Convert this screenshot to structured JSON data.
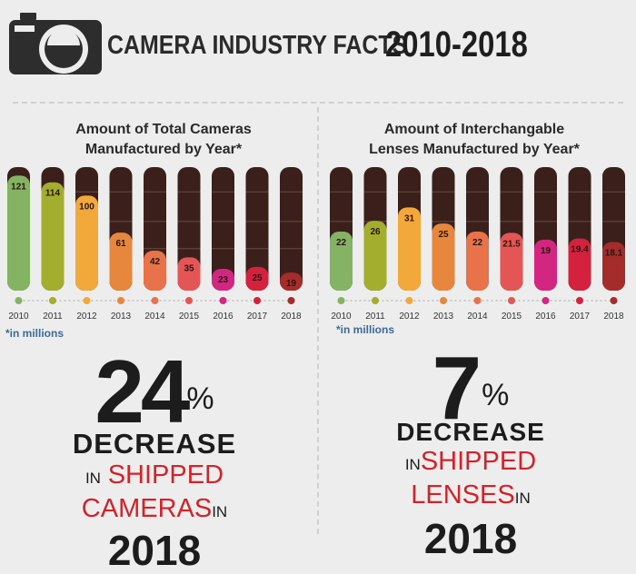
{
  "header": {
    "title": "CAMERA INDUSTRY FACTS",
    "years": "2010-2018"
  },
  "chart_data": [
    {
      "type": "bar",
      "title_line1": "Amount of Total Cameras",
      "title_line2": "Manufactured by Year*",
      "categories": [
        "2010",
        "2011",
        "2012",
        "2013",
        "2014",
        "2015",
        "2016",
        "2017",
        "2018"
      ],
      "values": [
        121,
        114,
        100,
        61,
        42,
        35,
        23,
        25,
        19
      ],
      "value_labels": [
        "121",
        "114",
        "100",
        "61",
        "42",
        "35",
        "23",
        "25",
        "19"
      ],
      "ylim": [
        0,
        130
      ],
      "colors": [
        "#84b463",
        "#a3ad2e",
        "#f3a83a",
        "#e7873e",
        "#e8724a",
        "#e45555",
        "#d22680",
        "#d4213d",
        "#a52c2a"
      ],
      "note": "*in millions"
    },
    {
      "type": "bar",
      "title_line1": "Amount of Interchangable",
      "title_line2": "Lenses Manufactured by Year*",
      "categories": [
        "2010",
        "2011",
        "2012",
        "2013",
        "2014",
        "2015",
        "2016",
        "2017",
        "2018"
      ],
      "values": [
        22,
        26,
        31,
        25,
        22,
        21.5,
        19,
        19.4,
        18.1
      ],
      "value_labels": [
        "22",
        "26",
        "31",
        "25",
        "22",
        "21.5",
        "19",
        "19.4",
        "18.1"
      ],
      "ylim": [
        0,
        46
      ],
      "colors": [
        "#84b463",
        "#a3ad2e",
        "#f3a83a",
        "#e7873e",
        "#e8724a",
        "#e45555",
        "#d22680",
        "#d4213d",
        "#a52c2a"
      ],
      "note": "*in millions"
    }
  ],
  "style": {
    "bar_background": "#3a1f1a",
    "stripe": "#6a4a40",
    "axis_dot_line": "#bdbdbd"
  },
  "stats": [
    {
      "number": "24",
      "percent": "%",
      "word": "DECREASE",
      "in1": "IN",
      "shipped": "SHIPPED",
      "item": "CAMERAS",
      "in2": "IN",
      "year": "2018"
    },
    {
      "number": "7",
      "percent": "%",
      "word": "DECREASE",
      "in1": "IN",
      "shipped": "SHIPPED",
      "item": "LENSES",
      "in2": "IN",
      "year": "2018"
    }
  ]
}
